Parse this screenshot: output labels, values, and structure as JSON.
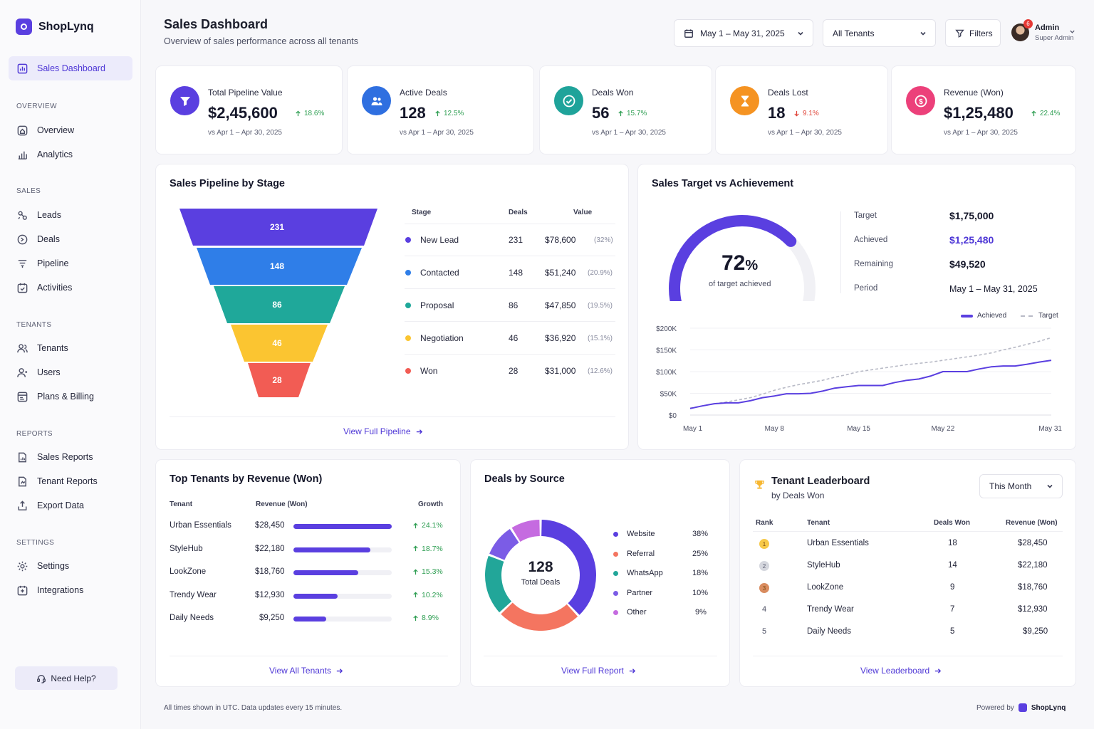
{
  "app": {
    "name": "ShopLynq"
  },
  "sidebar": {
    "active": "Sales Dashboard",
    "sections": {
      "overview": "OVERVIEW",
      "sales": "SALES",
      "tenants": "TENANTS",
      "reports": "REPORTS",
      "settings": "SETTINGS"
    },
    "items": {
      "sales_dashboard": "Sales Dashboard",
      "overview": "Overview",
      "analytics": "Analytics",
      "leads": "Leads",
      "deals": "Deals",
      "pipeline": "Pipeline",
      "activities": "Activities",
      "tenants": "Tenants",
      "users": "Users",
      "plans": "Plans & Billing",
      "sales_reports": "Sales Reports",
      "tenant_reports": "Tenant Reports",
      "export": "Export Data",
      "settings": "Settings",
      "integrations": "Integrations"
    },
    "help": "Need Help?"
  },
  "header": {
    "title": "Sales Dashboard",
    "subtitle": "Overview of sales performance across all tenants",
    "date_range": "May 1 – May 31, 2025",
    "tenant_select": "All Tenants",
    "filters": "Filters",
    "notifications": "6",
    "user_name": "Admin",
    "user_role": "Super Admin"
  },
  "kpis": [
    {
      "label": "Total Pipeline Value",
      "value": "$2,45,600",
      "change": "18.6%",
      "dir": "up",
      "cmp": "vs Apr 1 – Apr 30, 2025",
      "color": "#5a3fe0",
      "icon": "funnel-icon"
    },
    {
      "label": "Active Deals",
      "value": "128",
      "change": "12.5%",
      "dir": "up",
      "cmp": "vs Apr 1 – Apr 30, 2025",
      "color": "#2f6fe0",
      "icon": "users-icon"
    },
    {
      "label": "Deals Won",
      "value": "56",
      "change": "15.7%",
      "dir": "up",
      "cmp": "vs Apr 1 – Apr 30, 2025",
      "color": "#1fa39a",
      "icon": "check-circle-icon"
    },
    {
      "label": "Deals Lost",
      "value": "18",
      "change": "9.1%",
      "dir": "down",
      "cmp": "vs Apr 1 – Apr 30, 2025",
      "color": "#f59322",
      "icon": "hourglass-icon"
    },
    {
      "label": "Revenue (Won)",
      "value": "$1,25,480",
      "change": "22.4%",
      "dir": "up",
      "cmp": "vs Apr 1 – Apr 30, 2025",
      "color": "#ec407a",
      "icon": "dollar-icon"
    }
  ],
  "pipeline": {
    "title": "Sales Pipeline by Stage",
    "headers": {
      "stage": "Stage",
      "deals": "Deals",
      "value": "Value"
    },
    "stages": [
      {
        "name": "New Lead",
        "deals": "231",
        "value": "$78,600",
        "pct": "(32%)",
        "color": "#5a3fe0"
      },
      {
        "name": "Contacted",
        "deals": "148",
        "value": "$51,240",
        "pct": "(20.9%)",
        "color": "#2f7ee8"
      },
      {
        "name": "Proposal",
        "deals": "86",
        "value": "$47,850",
        "pct": "(19.5%)",
        "color": "#1fa89a"
      },
      {
        "name": "Negotiation",
        "deals": "46",
        "value": "$36,920",
        "pct": "(15.1%)",
        "color": "#fbc531"
      },
      {
        "name": "Won",
        "deals": "28",
        "value": "$31,000",
        "pct": "(12.6%)",
        "color": "#f25c54"
      }
    ],
    "link": "View Full Pipeline"
  },
  "target": {
    "title": "Sales Target vs Achievement",
    "percent": "72",
    "percent_sign": "%",
    "gauge_fraction": 0.72,
    "caption": "of target achieved",
    "rows": [
      {
        "label": "Target",
        "value": "$1,75,000"
      },
      {
        "label": "Achieved",
        "value": "$1,25,480"
      },
      {
        "label": "Remaining",
        "value": "$49,520"
      },
      {
        "label": "Period",
        "value": "May 1 – May 31, 2025"
      }
    ],
    "legend": {
      "achieved": "Achieved",
      "target": "Target"
    }
  },
  "chart_data": {
    "type": "line",
    "x": [
      1,
      2,
      3,
      4,
      5,
      6,
      7,
      8,
      9,
      10,
      11,
      12,
      13,
      14,
      15,
      16,
      17,
      18,
      19,
      20,
      21,
      22,
      23,
      24,
      25,
      26,
      27,
      28,
      29,
      30,
      31
    ],
    "xticks": [
      "May 1",
      "May 8",
      "May 15",
      "May 22",
      "May 31"
    ],
    "xtick_days": [
      1,
      8,
      15,
      22,
      31
    ],
    "yticks": [
      "$0",
      "$50K",
      "$100K",
      "$150K",
      "$200K"
    ],
    "ylim": [
      0,
      200000
    ],
    "series": [
      {
        "name": "Achieved",
        "color": "#5a3fe0",
        "values": [
          15000,
          21000,
          26000,
          28000,
          28000,
          33000,
          40000,
          44000,
          49000,
          49000,
          50000,
          55000,
          62000,
          65000,
          68000,
          68000,
          68000,
          75000,
          80000,
          83000,
          90000,
          100000,
          100000,
          100000,
          106000,
          111000,
          113000,
          113000,
          117000,
          122000,
          126000
        ]
      },
      {
        "name": "Target",
        "color": "#b8bac6",
        "values": [
          16000,
          21000,
          26000,
          30000,
          35000,
          40000,
          48000,
          57000,
          64000,
          70000,
          75000,
          80000,
          87000,
          93000,
          100000,
          104000,
          108000,
          112000,
          116000,
          119000,
          122000,
          126000,
          130000,
          134000,
          138000,
          143000,
          150000,
          156000,
          163000,
          170000,
          178000
        ]
      }
    ]
  },
  "top_tenants": {
    "title": "Top Tenants by Revenue (Won)",
    "headers": {
      "tenant": "Tenant",
      "revenue": "Revenue (Won)",
      "growth": "Growth"
    },
    "rows": [
      {
        "name": "Urban Essentials",
        "revenue": "$28,450",
        "share": 1.0,
        "growth": "24.1%"
      },
      {
        "name": "StyleHub",
        "revenue": "$22,180",
        "share": 0.78,
        "growth": "18.7%"
      },
      {
        "name": "LookZone",
        "revenue": "$18,760",
        "share": 0.66,
        "growth": "15.3%"
      },
      {
        "name": "Trendy Wear",
        "revenue": "$12,930",
        "share": 0.45,
        "growth": "10.2%"
      },
      {
        "name": "Daily Needs",
        "revenue": "$9,250",
        "share": 0.33,
        "growth": "8.9%"
      }
    ],
    "link": "View All Tenants"
  },
  "sources": {
    "title": "Deals by Source",
    "total": "128",
    "total_label": "Total Deals",
    "items": [
      {
        "name": "Website",
        "pct": "38%",
        "value": 38,
        "color": "#5a3fe0"
      },
      {
        "name": "Referral",
        "pct": "25%",
        "value": 25,
        "color": "#f47560"
      },
      {
        "name": "WhatsApp",
        "pct": "18%",
        "value": 18,
        "color": "#22a699"
      },
      {
        "name": "Partner",
        "pct": "10%",
        "value": 10,
        "color": "#7b5ce6"
      },
      {
        "name": "Other",
        "pct": "9%",
        "value": 9,
        "color": "#c56be0"
      }
    ],
    "link": "View Full Report"
  },
  "leaderboard": {
    "title": "Tenant Leaderboard",
    "subtitle": "by Deals Won",
    "period": "This Month",
    "headers": {
      "rank": "Rank",
      "tenant": "Tenant",
      "deals": "Deals Won",
      "revenue": "Revenue (Won)"
    },
    "rows": [
      {
        "rank": "1",
        "name": "Urban Essentials",
        "deals": "18",
        "revenue": "$28,450",
        "badge": "#f7c948"
      },
      {
        "rank": "2",
        "name": "StyleHub",
        "deals": "14",
        "revenue": "$22,180",
        "badge": "#d5d7de"
      },
      {
        "rank": "3",
        "name": "LookZone",
        "deals": "9",
        "revenue": "$18,760",
        "badge": "#d98c5f"
      },
      {
        "rank": "4",
        "name": "Trendy Wear",
        "deals": "7",
        "revenue": "$12,930",
        "badge": ""
      },
      {
        "rank": "5",
        "name": "Daily Needs",
        "deals": "5",
        "revenue": "$9,250",
        "badge": ""
      }
    ],
    "link": "View Leaderboard"
  },
  "footer": {
    "note": "All times shown in UTC. Data updates every 15 minutes.",
    "powered": "Powered by",
    "brand": "ShopLynq"
  }
}
